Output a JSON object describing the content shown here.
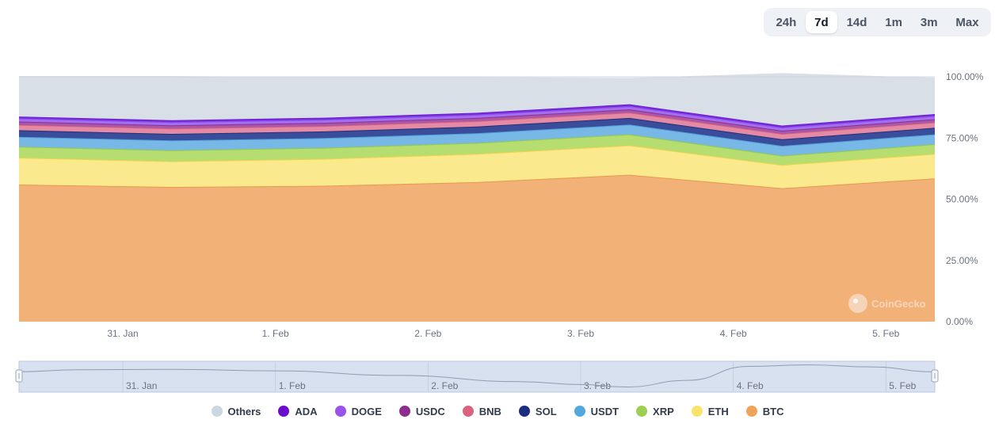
{
  "range_selector": {
    "options": [
      "24h",
      "7d",
      "14d",
      "1m",
      "3m",
      "Max"
    ],
    "active": "7d"
  },
  "watermark": "CoinGecko",
  "chart_data": {
    "type": "area",
    "stacking": "percent",
    "title": "",
    "xlabel": "",
    "ylabel": "",
    "ylim": [
      0,
      100
    ],
    "y_ticks": [
      "0.00%",
      "25.00%",
      "50.00%",
      "75.00%",
      "100.00%"
    ],
    "x_range": [
      -0.68,
      5.32
    ],
    "x_ticks": [
      {
        "label": "31. Jan",
        "x": 0
      },
      {
        "label": "1. Feb",
        "x": 1
      },
      {
        "label": "2. Feb",
        "x": 2
      },
      {
        "label": "3. Feb",
        "x": 3
      },
      {
        "label": "4. Feb",
        "x": 4
      },
      {
        "label": "5. Feb",
        "x": 5
      }
    ],
    "x": [
      -0.68,
      0.32,
      1.32,
      2.32,
      3.32,
      4.32,
      5.32
    ],
    "legend_position": "bottom-center",
    "series": [
      {
        "name": "BTC",
        "color": "#f2b277",
        "edge": "#e9964e",
        "values": [
          56.0,
          55.0,
          55.5,
          57.0,
          60.0,
          54.5,
          58.5
        ]
      },
      {
        "name": "ETH",
        "color": "#fbe98e",
        "edge": "#f3d34d",
        "values": [
          11.0,
          10.5,
          11.0,
          11.5,
          12.0,
          9.5,
          10.0
        ]
      },
      {
        "name": "XRP",
        "color": "#b5dd70",
        "edge": "#95c94a",
        "values": [
          4.5,
          4.5,
          4.5,
          4.5,
          4.5,
          3.8,
          4.0
        ]
      },
      {
        "name": "USDT",
        "color": "#78b8e6",
        "edge": "#4e9fd9",
        "values": [
          4.0,
          4.0,
          4.0,
          4.0,
          4.0,
          4.0,
          4.0
        ]
      },
      {
        "name": "SOL",
        "color": "#3a4d9a",
        "edge": "#1f2f7a",
        "values": [
          2.7,
          2.7,
          2.7,
          2.7,
          2.7,
          2.7,
          2.7
        ]
      },
      {
        "name": "BNB",
        "color": "#e58aa4",
        "edge": "#d9627f",
        "values": [
          2.2,
          2.2,
          2.2,
          2.2,
          2.2,
          2.2,
          2.2
        ]
      },
      {
        "name": "USDC",
        "color": "#a957a8",
        "edge": "#8c2f8c",
        "values": [
          1.3,
          1.3,
          1.3,
          1.3,
          1.3,
          1.3,
          1.3
        ]
      },
      {
        "name": "DOGE",
        "color": "#a36ef0",
        "edge": "#8c4fe8",
        "values": [
          1.3,
          1.3,
          1.3,
          1.3,
          1.3,
          1.3,
          1.3
        ]
      },
      {
        "name": "ADA",
        "color": "#7a2fdc",
        "edge": "#6b19d6",
        "values": [
          0.8,
          0.8,
          0.8,
          0.8,
          0.8,
          0.8,
          0.8
        ]
      },
      {
        "name": "Others",
        "color": "#d9dfe7",
        "edge": "#d9dfe7",
        "values": [
          16.2,
          17.7,
          16.2,
          14.2,
          10.4,
          21.1,
          14.5
        ]
      }
    ],
    "legend": [
      {
        "name": "Others",
        "color": "#ccd6e3"
      },
      {
        "name": "ADA",
        "color": "#6a0dcc"
      },
      {
        "name": "DOGE",
        "color": "#9b51ec"
      },
      {
        "name": "USDC",
        "color": "#8e2e8c"
      },
      {
        "name": "BNB",
        "color": "#d9627f"
      },
      {
        "name": "SOL",
        "color": "#1b2d80"
      },
      {
        "name": "USDT",
        "color": "#53a8df"
      },
      {
        "name": "XRP",
        "color": "#9bd052"
      },
      {
        "name": "ETH",
        "color": "#fae36a"
      },
      {
        "name": "BTC",
        "color": "#f0a35a"
      }
    ],
    "navigator": {
      "x_ticks": [
        {
          "label": "31. Jan",
          "x": 0
        },
        {
          "label": "1. Feb",
          "x": 1
        },
        {
          "label": "2. Feb",
          "x": 2
        },
        {
          "label": "3. Feb",
          "x": 3
        },
        {
          "label": "4. Feb",
          "x": 4
        },
        {
          "label": "5. Feb",
          "x": 5
        }
      ],
      "x": [
        -0.68,
        -0.3,
        0.3,
        1.0,
        1.8,
        2.6,
        3.0,
        3.3,
        3.7,
        4.1,
        4.5,
        4.9,
        5.32
      ],
      "values": [
        0.7,
        0.78,
        0.8,
        0.74,
        0.55,
        0.3,
        0.18,
        0.08,
        0.35,
        0.92,
        0.98,
        0.9,
        0.7
      ]
    }
  }
}
